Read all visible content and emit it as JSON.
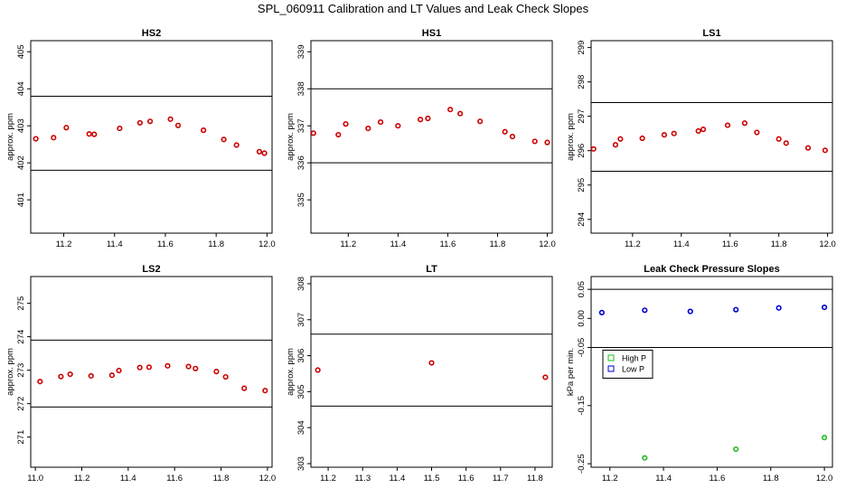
{
  "title": "SPL_060911  Calibration and LT Values and Leak Check Slopes",
  "colors": {
    "points": "#cc0000",
    "high_p": "#22bb22",
    "low_p": "#0000cc",
    "axis": "#000000"
  },
  "chart_data": [
    {
      "type": "scatter",
      "title": "HS2",
      "ylabel": "approx. ppm",
      "xlim": [
        11.07,
        12.02
      ],
      "ylim": [
        400.1,
        405.3
      ],
      "xticks": [
        11.2,
        11.4,
        11.6,
        11.8,
        12.0
      ],
      "xtick_labels": [
        "11.2",
        "11.4",
        "11.6",
        "11.8",
        "12.0"
      ],
      "yticks": [
        401,
        402,
        403,
        404,
        405
      ],
      "ytick_labels": [
        "401",
        "402",
        "403",
        "404",
        "405"
      ],
      "hlines": [
        401.8,
        403.8
      ],
      "series": [
        {
          "x": [
            11.09,
            11.16,
            11.21,
            11.3,
            11.32,
            11.42,
            11.5,
            11.54,
            11.62,
            11.65,
            11.75,
            11.83,
            11.88,
            11.97,
            11.99
          ],
          "y": [
            402.65,
            402.68,
            402.95,
            402.78,
            402.77,
            402.93,
            403.08,
            403.12,
            403.18,
            403.01,
            402.88,
            402.63,
            402.48,
            402.3,
            402.26
          ]
        }
      ]
    },
    {
      "type": "scatter",
      "title": "HS1",
      "ylabel": "approx. ppm",
      "xlim": [
        11.05,
        12.02
      ],
      "ylim": [
        334.1,
        339.3
      ],
      "xticks": [
        11.2,
        11.4,
        11.6,
        11.8,
        12.0
      ],
      "xtick_labels": [
        "11.2",
        "11.4",
        "11.6",
        "11.8",
        "12.0"
      ],
      "yticks": [
        335,
        336,
        337,
        338,
        339
      ],
      "ytick_labels": [
        "335",
        "336",
        "337",
        "338",
        "339"
      ],
      "hlines": [
        336.0,
        338.0
      ],
      "series": [
        {
          "x": [
            11.06,
            11.16,
            11.19,
            11.28,
            11.33,
            11.4,
            11.49,
            11.52,
            11.61,
            11.65,
            11.73,
            11.83,
            11.86,
            11.95,
            12.0
          ],
          "y": [
            336.8,
            336.76,
            337.05,
            336.93,
            337.1,
            337.0,
            337.17,
            337.2,
            337.44,
            337.33,
            337.12,
            336.84,
            336.71,
            336.58,
            336.55
          ]
        }
      ]
    },
    {
      "type": "scatter",
      "title": "LS1",
      "ylabel": "approx. ppm",
      "xlim": [
        11.03,
        12.02
      ],
      "ylim": [
        293.6,
        299.2
      ],
      "xticks": [
        11.2,
        11.4,
        11.6,
        11.8,
        12.0
      ],
      "xtick_labels": [
        "11.2",
        "11.4",
        "11.6",
        "11.8",
        "12.0"
      ],
      "yticks": [
        294,
        295,
        296,
        297,
        298,
        299
      ],
      "ytick_labels": [
        "294",
        "295",
        "296",
        "297",
        "298",
        "299"
      ],
      "hlines": [
        295.4,
        297.4
      ],
      "series": [
        {
          "x": [
            11.04,
            11.13,
            11.15,
            11.24,
            11.33,
            11.37,
            11.47,
            11.49,
            11.59,
            11.66,
            11.71,
            11.8,
            11.83,
            11.92,
            11.99
          ],
          "y": [
            296.05,
            296.17,
            296.34,
            296.36,
            296.46,
            296.5,
            296.57,
            296.62,
            296.74,
            296.8,
            296.53,
            296.34,
            296.22,
            296.08,
            296.01
          ]
        }
      ]
    },
    {
      "type": "scatter",
      "title": "LS2",
      "ylabel": "approx. ppm",
      "xlim": [
        10.98,
        12.02
      ],
      "ylim": [
        270.1,
        275.8
      ],
      "xticks": [
        11.0,
        11.2,
        11.4,
        11.6,
        11.8,
        12.0
      ],
      "xtick_labels": [
        "11.0",
        "11.2",
        "11.4",
        "11.6",
        "11.8",
        "12.0"
      ],
      "yticks": [
        271,
        272,
        273,
        274,
        275
      ],
      "ytick_labels": [
        "271",
        "272",
        "273",
        "274",
        "275"
      ],
      "hlines": [
        271.9,
        273.9
      ],
      "series": [
        {
          "x": [
            11.02,
            11.11,
            11.15,
            11.24,
            11.33,
            11.36,
            11.45,
            11.49,
            11.57,
            11.66,
            11.69,
            11.78,
            11.82,
            11.9,
            11.99
          ],
          "y": [
            272.66,
            272.81,
            272.88,
            272.83,
            272.85,
            272.99,
            273.08,
            273.09,
            273.13,
            273.11,
            273.05,
            272.96,
            272.8,
            272.46,
            272.39
          ]
        }
      ]
    },
    {
      "type": "scatter",
      "title": "LT",
      "ylabel": "approx. ppm",
      "xlim": [
        11.15,
        11.85
      ],
      "ylim": [
        302.9,
        308.2
      ],
      "xticks": [
        11.2,
        11.3,
        11.4,
        11.5,
        11.6,
        11.7,
        11.8
      ],
      "xtick_labels": [
        "11.2",
        "11.3",
        "11.4",
        "11.5",
        "11.6",
        "11.7",
        "11.8"
      ],
      "yticks": [
        303,
        304,
        305,
        306,
        307,
        308
      ],
      "ytick_labels": [
        "303",
        "304",
        "305",
        "306",
        "307",
        "308"
      ],
      "hlines": [
        304.6,
        306.6
      ],
      "series": [
        {
          "x": [
            11.17,
            11.5,
            11.83
          ],
          "y": [
            305.6,
            305.8,
            305.4
          ]
        }
      ]
    },
    {
      "type": "scatter",
      "title": "Leak Check Pressure Slopes",
      "ylabel": "kPa per min.",
      "xlim": [
        11.13,
        12.03
      ],
      "ylim": [
        -0.256,
        0.072
      ],
      "xticks": [
        11.2,
        11.4,
        11.6,
        11.8,
        12.0
      ],
      "xtick_labels": [
        "11.2",
        "11.4",
        "11.6",
        "11.8",
        "12.0"
      ],
      "yticks": [
        -0.25,
        -0.15,
        -0.05,
        0.0,
        0.05
      ],
      "ytick_labels": [
        "-0.25",
        "-0.15",
        "-0.05",
        "0.00",
        "0.05"
      ],
      "hlines": [
        0.05,
        -0.05
      ],
      "legend": {
        "position": "left",
        "entries": [
          "High P",
          "Low P"
        ]
      },
      "series": [
        {
          "name": "High P",
          "x": [
            11.33,
            11.67,
            12.0
          ],
          "y": [
            -0.24,
            -0.225,
            -0.205
          ]
        },
        {
          "name": "Low P",
          "x": [
            11.17,
            11.33,
            11.5,
            11.67,
            11.83,
            12.0
          ],
          "y": [
            0.01,
            0.014,
            0.012,
            0.015,
            0.018,
            0.019
          ]
        }
      ]
    }
  ]
}
